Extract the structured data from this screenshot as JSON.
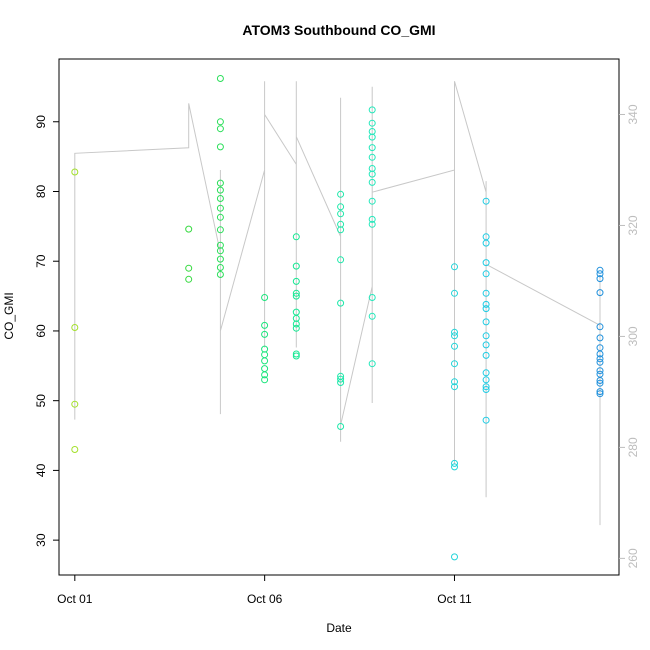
{
  "chart_data": {
    "type": "scatter",
    "title": "ATOM3 Southbound CO_GMI",
    "xlabel": "Date",
    "ylabel": "CO_GMI",
    "x_unit": "date",
    "xlim": [
      "2016-09-30T14:00",
      "2016-10-15T08:00"
    ],
    "ylim": [
      25,
      99
    ],
    "x_ticks": [
      {
        "label": "Oct 01",
        "value": "2016-10-01"
      },
      {
        "label": "Oct 06",
        "value": "2016-10-06"
      },
      {
        "label": "Oct 11",
        "value": "2016-10-11"
      }
    ],
    "y_ticks": [
      30,
      40,
      50,
      60,
      70,
      80,
      90
    ],
    "y2_ticks": [
      260,
      280,
      300,
      320,
      340
    ],
    "y2lim": [
      257,
      350
    ],
    "grid": false,
    "legend": "none",
    "colors": {
      "line": "#c8c8c8",
      "y2_axis": "#bdbdbd",
      "point_gradient": [
        "#a3e02a",
        "#3ad93a",
        "#12e88c",
        "#26e8c4",
        "#1ec8e6",
        "#1f90dc"
      ]
    },
    "series": [
      {
        "marker": "open-circle",
        "points": [
          [
            "2016-10-01T00:00",
            82.8
          ],
          [
            "2016-10-01T00:00",
            60.5
          ],
          [
            "2016-10-01T00:00",
            49.5
          ],
          [
            "2016-10-01T00:00",
            43.0
          ],
          [
            "2016-10-04T00:00",
            74.6
          ],
          [
            "2016-10-04T00:00",
            69.0
          ],
          [
            "2016-10-04T00:00",
            67.4
          ],
          [
            "2016-10-04T20:00",
            96.2
          ],
          [
            "2016-10-04T20:00",
            90.0
          ],
          [
            "2016-10-04T20:00",
            89.0
          ],
          [
            "2016-10-04T20:00",
            86.4
          ],
          [
            "2016-10-04T20:00",
            81.2
          ],
          [
            "2016-10-04T20:00",
            80.2
          ],
          [
            "2016-10-04T20:00",
            79.0
          ],
          [
            "2016-10-04T20:00",
            77.6
          ],
          [
            "2016-10-04T20:00",
            76.3
          ],
          [
            "2016-10-04T20:00",
            74.5
          ],
          [
            "2016-10-04T20:00",
            72.3
          ],
          [
            "2016-10-04T20:00",
            71.5
          ],
          [
            "2016-10-04T20:00",
            70.3
          ],
          [
            "2016-10-04T20:00",
            69.1
          ],
          [
            "2016-10-04T20:00",
            68.1
          ],
          [
            "2016-10-06T00:00",
            64.8
          ],
          [
            "2016-10-06T00:00",
            60.8
          ],
          [
            "2016-10-06T00:00",
            59.5
          ],
          [
            "2016-10-06T00:00",
            57.4
          ],
          [
            "2016-10-06T00:00",
            56.6
          ],
          [
            "2016-10-06T00:00",
            55.7
          ],
          [
            "2016-10-06T00:00",
            54.6
          ],
          [
            "2016-10-06T00:00",
            53.7
          ],
          [
            "2016-10-06T00:00",
            53.0
          ],
          [
            "2016-10-06T20:00",
            73.5
          ],
          [
            "2016-10-06T20:00",
            69.3
          ],
          [
            "2016-10-06T20:00",
            67.1
          ],
          [
            "2016-10-06T20:00",
            65.4
          ],
          [
            "2016-10-06T20:00",
            65.0
          ],
          [
            "2016-10-06T20:00",
            62.7
          ],
          [
            "2016-10-06T20:00",
            61.8
          ],
          [
            "2016-10-06T20:00",
            61.0
          ],
          [
            "2016-10-06T20:00",
            60.4
          ],
          [
            "2016-10-06T20:00",
            56.7
          ],
          [
            "2016-10-06T20:00",
            56.4
          ],
          [
            "2016-10-08T00:00",
            79.6
          ],
          [
            "2016-10-08T00:00",
            77.8
          ],
          [
            "2016-10-08T00:00",
            76.8
          ],
          [
            "2016-10-08T00:00",
            75.3
          ],
          [
            "2016-10-08T00:00",
            74.5
          ],
          [
            "2016-10-08T00:00",
            70.2
          ],
          [
            "2016-10-08T00:00",
            64.0
          ],
          [
            "2016-10-08T00:00",
            53.5
          ],
          [
            "2016-10-08T00:00",
            53.1
          ],
          [
            "2016-10-08T00:00",
            52.6
          ],
          [
            "2016-10-08T00:00",
            46.3
          ],
          [
            "2016-10-08T20:00",
            91.7
          ],
          [
            "2016-10-08T20:00",
            89.8
          ],
          [
            "2016-10-08T20:00",
            88.6
          ],
          [
            "2016-10-08T20:00",
            87.8
          ],
          [
            "2016-10-08T20:00",
            86.3
          ],
          [
            "2016-10-08T20:00",
            84.9
          ],
          [
            "2016-10-08T20:00",
            83.3
          ],
          [
            "2016-10-08T20:00",
            82.5
          ],
          [
            "2016-10-08T20:00",
            81.3
          ],
          [
            "2016-10-08T20:00",
            78.6
          ],
          [
            "2016-10-08T20:00",
            76.0
          ],
          [
            "2016-10-08T20:00",
            75.3
          ],
          [
            "2016-10-08T20:00",
            64.8
          ],
          [
            "2016-10-08T20:00",
            62.1
          ],
          [
            "2016-10-08T20:00",
            55.3
          ],
          [
            "2016-10-11T00:00",
            69.2
          ],
          [
            "2016-10-11T00:00",
            65.4
          ],
          [
            "2016-10-11T00:00",
            59.8
          ],
          [
            "2016-10-11T00:00",
            59.3
          ],
          [
            "2016-10-11T00:00",
            57.8
          ],
          [
            "2016-10-11T00:00",
            55.3
          ],
          [
            "2016-10-11T00:00",
            52.7
          ],
          [
            "2016-10-11T00:00",
            52.0
          ],
          [
            "2016-10-11T00:00",
            41.0
          ],
          [
            "2016-10-11T00:00",
            40.5
          ],
          [
            "2016-10-11T00:00",
            27.6
          ],
          [
            "2016-10-11T20:00",
            78.6
          ],
          [
            "2016-10-11T20:00",
            73.5
          ],
          [
            "2016-10-11T20:00",
            72.6
          ],
          [
            "2016-10-11T20:00",
            69.8
          ],
          [
            "2016-10-11T20:00",
            68.2
          ],
          [
            "2016-10-11T20:00",
            65.4
          ],
          [
            "2016-10-11T20:00",
            63.8
          ],
          [
            "2016-10-11T20:00",
            63.2
          ],
          [
            "2016-10-11T20:00",
            61.3
          ],
          [
            "2016-10-11T20:00",
            59.3
          ],
          [
            "2016-10-11T20:00",
            58.0
          ],
          [
            "2016-10-11T20:00",
            56.5
          ],
          [
            "2016-10-11T20:00",
            54.0
          ],
          [
            "2016-10-11T20:00",
            53.0
          ],
          [
            "2016-10-11T20:00",
            52.0
          ],
          [
            "2016-10-11T20:00",
            51.6
          ],
          [
            "2016-10-11T20:00",
            47.2
          ],
          [
            "2016-10-14T20:00",
            68.7
          ],
          [
            "2016-10-14T20:00",
            68.2
          ],
          [
            "2016-10-14T20:00",
            67.5
          ],
          [
            "2016-10-14T20:00",
            65.5
          ],
          [
            "2016-10-14T20:00",
            60.6
          ],
          [
            "2016-10-14T20:00",
            59.0
          ],
          [
            "2016-10-14T20:00",
            57.6
          ],
          [
            "2016-10-14T20:00",
            56.7
          ],
          [
            "2016-10-14T20:00",
            56.0
          ],
          [
            "2016-10-14T20:00",
            55.5
          ],
          [
            "2016-10-14T20:00",
            54.3
          ],
          [
            "2016-10-14T20:00",
            53.8
          ],
          [
            "2016-10-14T20:00",
            52.9
          ],
          [
            "2016-10-14T20:00",
            52.5
          ],
          [
            "2016-10-14T20:00",
            51.3
          ],
          [
            "2016-10-14T20:00",
            51.0
          ]
        ]
      },
      {
        "axis": "right",
        "style": "line",
        "points": [
          [
            "2016-10-01T00:00",
            327
          ],
          [
            "2016-10-01T00:00",
            285
          ],
          [
            "2016-10-01T00:00",
            333
          ],
          [
            "2016-10-04T00:00",
            334
          ],
          [
            "2016-10-04T00:00",
            342
          ],
          [
            "2016-10-04T20:00",
            315
          ],
          [
            "2016-10-04T20:00",
            292
          ],
          [
            "2016-10-04T20:00",
            330
          ],
          [
            "2016-10-04T20:00",
            286
          ],
          [
            "2016-10-04T20:00",
            318
          ],
          [
            "2016-10-04T20:00",
            290
          ],
          [
            "2016-10-04T20:00",
            323
          ],
          [
            "2016-10-04T20:00",
            294
          ],
          [
            "2016-10-04T20:00",
            327
          ],
          [
            "2016-10-04T20:00",
            297
          ],
          [
            "2016-10-04T20:00",
            320
          ],
          [
            "2016-10-04T20:00",
            301
          ],
          [
            "2016-10-06T00:00",
            330
          ],
          [
            "2016-10-06T00:00",
            320
          ],
          [
            "2016-10-06T00:00",
            346
          ],
          [
            "2016-10-06T00:00",
            302
          ],
          [
            "2016-10-06T00:00",
            343
          ],
          [
            "2016-10-06T00:00",
            298
          ],
          [
            "2016-10-06T00:00",
            346
          ],
          [
            "2016-10-06T00:00",
            306
          ],
          [
            "2016-10-06T00:00",
            340
          ],
          [
            "2016-10-06T20:00",
            331
          ],
          [
            "2016-10-06T20:00",
            302
          ],
          [
            "2016-10-06T20:00",
            340
          ],
          [
            "2016-10-06T20:00",
            298
          ],
          [
            "2016-10-06T20:00",
            346
          ],
          [
            "2016-10-06T20:00",
            303
          ],
          [
            "2016-10-06T20:00",
            338
          ],
          [
            "2016-10-06T20:00",
            306
          ],
          [
            "2016-10-06T20:00",
            345
          ],
          [
            "2016-10-06T20:00",
            300
          ],
          [
            "2016-10-06T20:00",
            336
          ],
          [
            "2016-10-08T00:00",
            318
          ],
          [
            "2016-10-08T00:00",
            281
          ],
          [
            "2016-10-08T00:00",
            336
          ],
          [
            "2016-10-08T00:00",
            283
          ],
          [
            "2016-10-08T00:00",
            343
          ],
          [
            "2016-10-08T00:00",
            286
          ],
          [
            "2016-10-08T00:00",
            330
          ],
          [
            "2016-10-08T00:00",
            288
          ],
          [
            "2016-10-08T00:00",
            325
          ],
          [
            "2016-10-08T00:00",
            284
          ],
          [
            "2016-10-08T20:00",
            309
          ],
          [
            "2016-10-08T20:00",
            292
          ],
          [
            "2016-10-08T20:00",
            338
          ],
          [
            "2016-10-08T20:00",
            288
          ],
          [
            "2016-10-08T20:00",
            345
          ],
          [
            "2016-10-08T20:00",
            290
          ],
          [
            "2016-10-08T20:00",
            332
          ],
          [
            "2016-10-08T20:00",
            294
          ],
          [
            "2016-10-08T20:00",
            340
          ],
          [
            "2016-10-08T20:00",
            296
          ],
          [
            "2016-10-08T20:00",
            326
          ],
          [
            "2016-10-11T00:00",
            330
          ],
          [
            "2016-10-11T00:00",
            277
          ],
          [
            "2016-10-11T00:00",
            337
          ],
          [
            "2016-10-11T00:00",
            280
          ],
          [
            "2016-10-11T00:00",
            342
          ],
          [
            "2016-10-11T00:00",
            283
          ],
          [
            "2016-10-11T00:00",
            328
          ],
          [
            "2016-10-11T00:00",
            286
          ],
          [
            "2016-10-11T00:00",
            323
          ],
          [
            "2016-10-11T00:00",
            289
          ],
          [
            "2016-10-11T00:00",
            346
          ],
          [
            "2016-10-11T20:00",
            326
          ],
          [
            "2016-10-11T20:00",
            271
          ],
          [
            "2016-10-11T20:00",
            328
          ],
          [
            "2016-10-11T20:00",
            276
          ],
          [
            "2016-10-11T20:00",
            322
          ],
          [
            "2016-10-11T20:00",
            281
          ],
          [
            "2016-10-11T20:00",
            325
          ],
          [
            "2016-10-11T20:00",
            284
          ],
          [
            "2016-10-11T20:00",
            318
          ],
          [
            "2016-10-11T20:00",
            288
          ],
          [
            "2016-10-11T20:00",
            313
          ],
          [
            "2016-10-14T20:00",
            302
          ],
          [
            "2016-10-14T20:00",
            266
          ],
          [
            "2016-10-14T20:00",
            304
          ],
          [
            "2016-10-14T20:00",
            274
          ],
          [
            "2016-10-14T20:00",
            309
          ],
          [
            "2016-10-14T20:00",
            278
          ],
          [
            "2016-10-14T20:00",
            305
          ],
          [
            "2016-10-14T20:00",
            284
          ],
          [
            "2016-10-14T20:00",
            311
          ],
          [
            "2016-10-14T20:00",
            288
          ],
          [
            "2016-10-14T20:00",
            303
          ]
        ]
      }
    ]
  }
}
